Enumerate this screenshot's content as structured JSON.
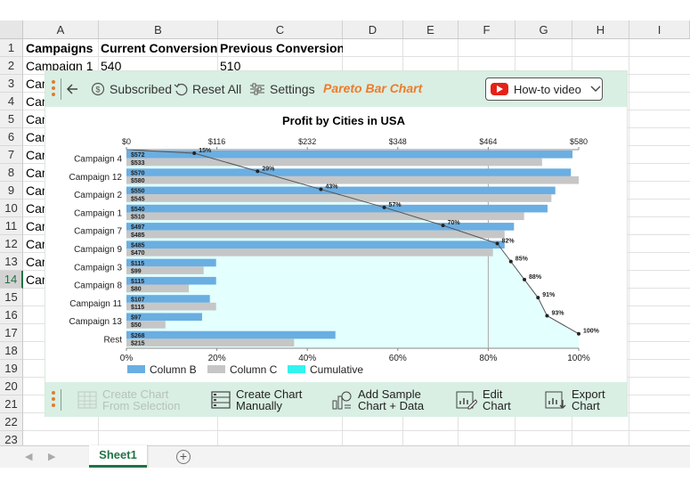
{
  "sheet": {
    "columns": [
      "A",
      "B",
      "C",
      "D",
      "E",
      "F",
      "G",
      "H",
      "I"
    ],
    "rows": [
      "1",
      "2",
      "3",
      "4",
      "5",
      "6",
      "7",
      "8",
      "9",
      "10",
      "11",
      "12",
      "13",
      "14",
      "15",
      "16",
      "17",
      "18",
      "19",
      "20",
      "21",
      "22",
      "23"
    ],
    "selected_row": "14",
    "cells": {
      "A1": "Campaigns",
      "B1": "Current Conversions",
      "C1": "Previous Conversions",
      "A2": "Campaign 1",
      "B2": "540",
      "C2": "510",
      "A_partial": "Cam"
    },
    "tab_name": "Sheet1"
  },
  "toolbar": {
    "subscribed_label": "Subscribed",
    "reset_label": "Reset All",
    "settings_label": "Settings",
    "title": "Pareto Bar Chart",
    "howto_label": "How-to video"
  },
  "bottombar": {
    "create_from_selection_1": "Create Chart",
    "create_from_selection_2": "From Selection",
    "create_manually_1": "Create Chart",
    "create_manually_2": "Manually",
    "add_sample_1": "Add Sample",
    "add_sample_2": "Chart + Data",
    "edit_1": "Edit",
    "edit_2": "Chart",
    "export_1": "Export",
    "export_2": "Chart"
  },
  "chart_data": {
    "type": "bar",
    "title": "Profit by Cities in USA",
    "categories": [
      "Campaign 4",
      "Campaign 12",
      "Campaign 2",
      "Campaign 1",
      "Campaign 7",
      "Campaign 9",
      "Campaign 3",
      "Campaign 8",
      "Campaign 11",
      "Campaign 13",
      "Rest"
    ],
    "series": [
      {
        "name": "Column B",
        "values": [
          572,
          570,
          550,
          540,
          497,
          485,
          115,
          115,
          107,
          97,
          268
        ],
        "labels": [
          "$572",
          "$570",
          "$550",
          "$540",
          "$497",
          "$485",
          "$115",
          "$115",
          "$107",
          "$97",
          "$268"
        ],
        "color": "#6aaee2"
      },
      {
        "name": "Column C",
        "values": [
          533,
          580,
          545,
          510,
          485,
          470,
          99,
          80,
          115,
          50,
          215
        ],
        "labels": [
          "$533",
          "$580",
          "$545",
          "$510",
          "$485",
          "$470",
          "$99",
          "$80",
          "$115",
          "$50",
          "$215"
        ],
        "color": "#c6c6c6"
      },
      {
        "name": "Cumulative",
        "values": [
          15,
          29,
          43,
          57,
          70,
          82,
          85,
          88,
          91,
          93,
          100
        ],
        "labels": [
          "15%",
          "29%",
          "43%",
          "57%",
          "70%",
          "82%",
          "85%",
          "88%",
          "91%",
          "93%",
          "100%"
        ],
        "color": "#33f3f0"
      }
    ],
    "top_axis": {
      "ticks": [
        "$0",
        "$116",
        "$232",
        "$348",
        "$464",
        "$580"
      ],
      "range": [
        0,
        580
      ]
    },
    "bottom_axis": {
      "ticks": [
        "0%",
        "20%",
        "40%",
        "60%",
        "80%",
        "100%"
      ],
      "range": [
        0,
        100
      ]
    },
    "highlight_threshold_percent": 80,
    "legend_position": "bottom"
  }
}
